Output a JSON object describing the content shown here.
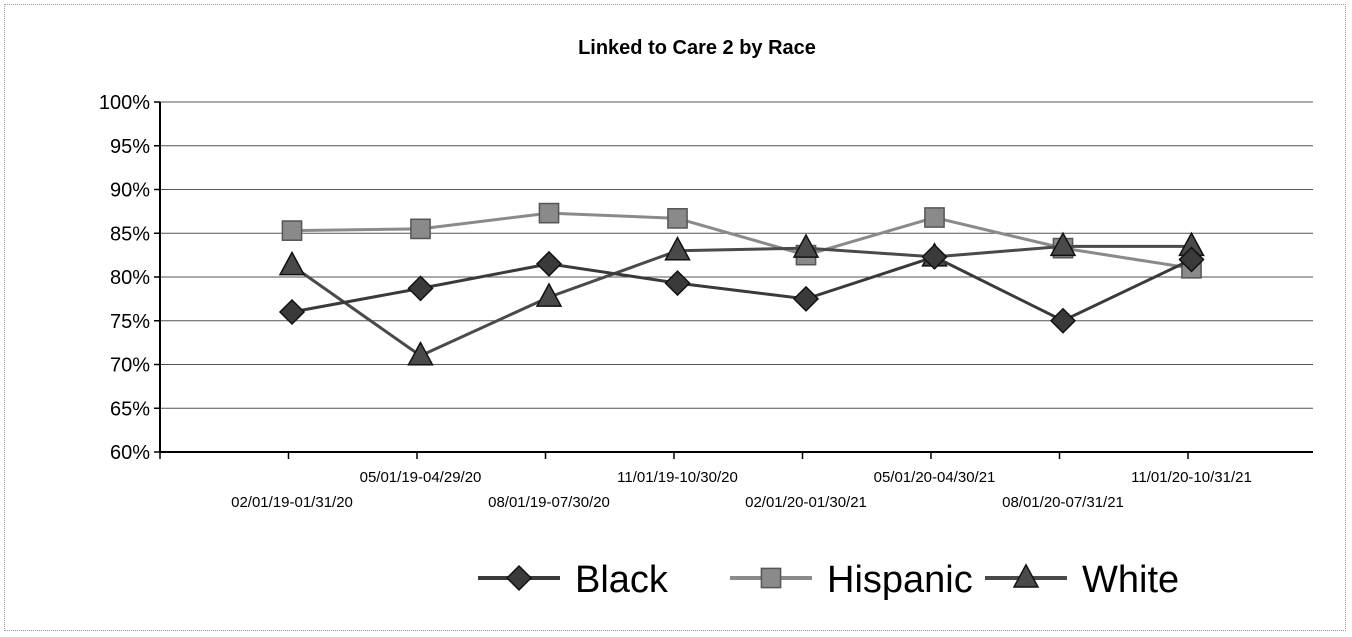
{
  "chart_data": {
    "type": "line",
    "title": "Linked to Care 2 by Race",
    "xlabel": "",
    "ylabel": "",
    "categories": [
      "02/01/19-01/31/20",
      "05/01/19-04/29/20",
      "08/01/19-07/30/20",
      "11/01/19-10/30/20",
      "02/01/20-01/30/21",
      "05/01/20-04/30/21",
      "08/01/20-07/31/21",
      "11/01/20-10/31/21"
    ],
    "y_ticks": [
      "60%",
      "65%",
      "70%",
      "75%",
      "80%",
      "85%",
      "90%",
      "95%",
      "100%"
    ],
    "ylim": [
      60,
      100
    ],
    "y_unit": "%",
    "grid": true,
    "legend_position": "bottom",
    "series": [
      {
        "name": "Black",
        "marker": "diamond",
        "color": "#3a3a3a",
        "values": [
          76,
          78.7,
          81.5,
          79.3,
          77.5,
          82.3,
          75,
          82
        ]
      },
      {
        "name": "Hispanic",
        "marker": "square",
        "color": "#8a8a8a",
        "values": [
          85.3,
          85.5,
          87.3,
          86.7,
          82.5,
          86.8,
          83.3,
          81
        ]
      },
      {
        "name": "White",
        "marker": "triangle",
        "color": "#4a4a4a",
        "values": [
          81.3,
          71,
          77.7,
          83,
          83.3,
          82.3,
          83.5,
          83.5
        ]
      }
    ]
  }
}
